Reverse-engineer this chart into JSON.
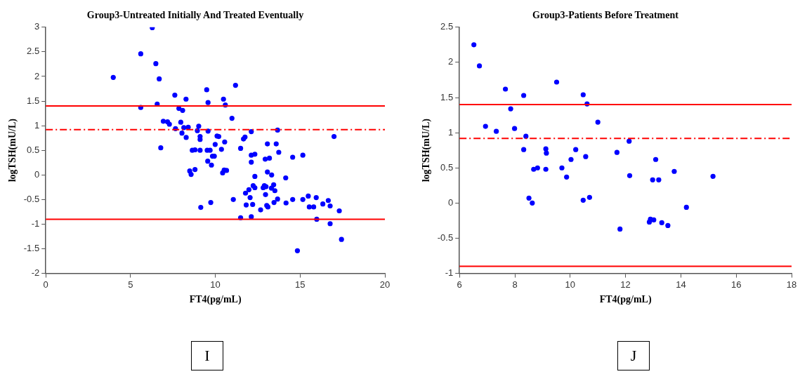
{
  "chart_data": [
    {
      "type": "scatter",
      "title": "Group3-Untreated Initially And Treated Eventually",
      "xlabel": "FT4(pg/mL)",
      "ylabel": "logTSH(mU/L)",
      "marker": "circle",
      "grid": false,
      "legend": false,
      "xlim": [
        0,
        20
      ],
      "xticks": [
        0,
        5,
        10,
        15,
        20
      ],
      "ylim": [
        -2,
        3
      ],
      "yticks": [
        -2,
        -1.5,
        -1,
        -0.5,
        0,
        0.5,
        1,
        1.5,
        2,
        2.5,
        3
      ],
      "series": [
        {
          "color": "#0000ff",
          "x": [
            3.98,
            5.6,
            6.28,
            6.49,
            6.69,
            5.6,
            6.57,
            6.78,
            6.93,
            7.18,
            7.29,
            7.61,
            7.65,
            7.85,
            8.07,
            7.96,
            8.03,
            8.14,
            8.27,
            8.28,
            8.4,
            8.64,
            8.8,
            9.1,
            8.49,
            8.57,
            8.8,
            8.94,
            9.02,
            9.1,
            9.1,
            9.14,
            9.49,
            9.57,
            9.57,
            9.52,
            9.69,
            9.83,
            9.94,
            9.55,
            9.77,
            9.73,
            9.99,
            10.1,
            11.19,
            10.48,
            10.59,
            10.98,
            10.2,
            10.55,
            10.36,
            10.43,
            10.52,
            10.66,
            11.06,
            11.49,
            12.12,
            11.66,
            11.75,
            11.49,
            12.12,
            12.12,
            12.33,
            13.07,
            13.59,
            13.67,
            12.94,
            13.19,
            13.74,
            14.56,
            15.16,
            17.0,
            12.33,
            13.07,
            13.32,
            14.15,
            11.98,
            11.78,
            12.05,
            12.23,
            12.33,
            11.82,
            12.2,
            12.67,
            12.82,
            12.89,
            12.99,
            12.96,
            13.31,
            13.44,
            13.51,
            13.67,
            13.46,
            13.03,
            13.1,
            12.12,
            14.17,
            14.56,
            15.16,
            15.48,
            15.95,
            15.54,
            15.8,
            16.34,
            16.66,
            16.77,
            17.31,
            15.98,
            16.77,
            17.44,
            14.84
          ],
          "values": [
            1.98,
            2.46,
            2.99,
            2.26,
            1.95,
            1.37,
            1.44,
            0.55,
            1.09,
            1.08,
            1.03,
            1.62,
            0.94,
            1.35,
            1.31,
            1.07,
            0.85,
            0.96,
            1.54,
            0.76,
            0.97,
            0.5,
            0.51,
            0.5,
            0.08,
            0.01,
            0.11,
            0.9,
            0.99,
            0.78,
            0.72,
            -0.66,
            1.73,
            1.47,
            0.89,
            0.5,
            0.5,
            0.38,
            0.38,
            0.28,
            0.2,
            -0.56,
            0.62,
            0.79,
            1.82,
            1.54,
            1.42,
            1.15,
            0.78,
            0.67,
            0.52,
            0.04,
            0.1,
            0.09,
            -0.5,
            -0.87,
            0.88,
            0.73,
            0.77,
            0.54,
            0.26,
            0.4,
            0.42,
            0.63,
            0.63,
            0.91,
            0.32,
            0.34,
            0.46,
            0.36,
            0.4,
            0.78,
            -0.03,
            0.06,
            0.0,
            -0.06,
            -0.3,
            -0.37,
            -0.46,
            -0.22,
            -0.26,
            -0.61,
            -0.6,
            -0.71,
            -0.26,
            -0.22,
            -0.24,
            -0.4,
            -0.27,
            -0.2,
            -0.32,
            -0.49,
            -0.56,
            -0.62,
            -0.65,
            -0.85,
            -0.57,
            -0.5,
            -0.5,
            -0.43,
            -0.46,
            -0.65,
            -0.65,
            -0.59,
            -0.52,
            -0.63,
            -0.73,
            -0.9,
            -0.99,
            -1.31,
            -1.54
          ]
        }
      ],
      "ref_lines": [
        {
          "axis": "y",
          "value": 1.4,
          "color": "#ff0000",
          "line_style": "solid"
        },
        {
          "axis": "y",
          "value": 0.92,
          "color": "#ff0000",
          "line_style": "dashdot"
        },
        {
          "axis": "y",
          "value": -0.9,
          "color": "#ff0000",
          "line_style": "solid"
        }
      ],
      "annotations": [
        "I"
      ]
    },
    {
      "type": "scatter",
      "title": "Group3-Patients Before Treatment",
      "xlabel": "FT4(pg/mL)",
      "ylabel": "logTSH(mU/L)",
      "marker": "circle",
      "grid": false,
      "legend": false,
      "xlim": [
        6,
        18
      ],
      "xticks": [
        6,
        8,
        10,
        12,
        14,
        16,
        18
      ],
      "ylim": [
        -1,
        2.5
      ],
      "yticks": [
        -1,
        -0.5,
        0,
        0.5,
        1,
        1.5,
        2,
        2.5
      ],
      "series": [
        {
          "color": "#0000ff",
          "x": [
            6.52,
            6.72,
            6.94,
            7.33,
            7.66,
            7.85,
            7.99,
            8.32,
            8.4,
            8.32,
            8.51,
            8.63,
            8.68,
            8.82,
            9.12,
            9.14,
            9.12,
            9.51,
            9.7,
            9.87,
            10.03,
            10.2,
            10.47,
            10.61,
            10.56,
            10.47,
            10.7,
            11.0,
            12.13,
            11.69,
            13.09,
            13.76,
            12.15,
            12.98,
            13.2,
            15.16,
            14.2,
            12.86,
            12.9,
            13.02,
            13.31,
            13.53,
            11.8
          ],
          "values": [
            2.25,
            1.95,
            1.09,
            1.02,
            1.62,
            1.34,
            1.06,
            1.53,
            0.95,
            0.76,
            0.07,
            0.0,
            0.48,
            0.5,
            0.77,
            0.71,
            0.48,
            1.72,
            0.5,
            0.37,
            0.62,
            0.76,
            1.54,
            1.41,
            0.66,
            0.04,
            0.08,
            1.15,
            0.88,
            0.72,
            0.62,
            0.45,
            0.39,
            0.33,
            0.33,
            0.38,
            -0.06,
            -0.27,
            -0.23,
            -0.24,
            -0.28,
            -0.32,
            -0.37
          ]
        }
      ],
      "ref_lines": [
        {
          "axis": "y",
          "value": 1.4,
          "color": "#ff0000",
          "line_style": "solid"
        },
        {
          "axis": "y",
          "value": 0.92,
          "color": "#ff0000",
          "line_style": "dashdot"
        },
        {
          "axis": "y",
          "value": -0.9,
          "color": "#ff0000",
          "line_style": "solid"
        }
      ],
      "annotations": [
        "J"
      ]
    }
  ]
}
